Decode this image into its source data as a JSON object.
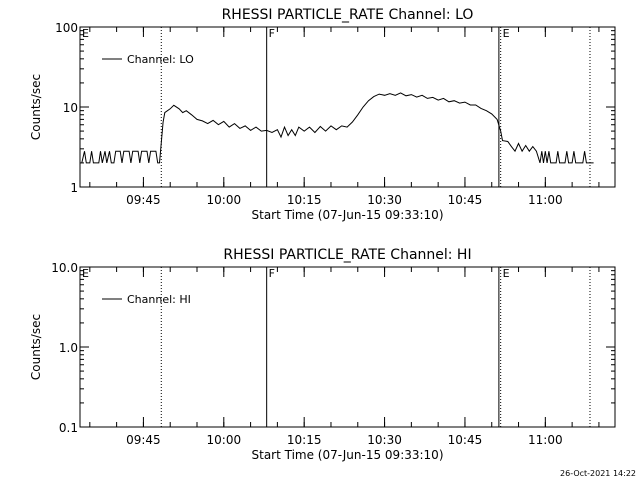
{
  "timestamp": "26-Oct-2021 14:22",
  "chart_data": [
    {
      "type": "line",
      "title": "RHESSI PARTICLE_RATE Channel: LO",
      "xlabel": "Start Time (07-Jun-15 09:33:10)",
      "ylabel": "Counts/sec",
      "yscale": "log",
      "ylim": [
        1,
        100
      ],
      "xlim": [
        "09:33:10",
        "11:13:00"
      ],
      "yticks": [
        {
          "v": 1,
          "label": "1"
        },
        {
          "v": 10,
          "label": "10"
        },
        {
          "v": 100,
          "label": "100"
        }
      ],
      "xticks": [
        {
          "t": "09:45",
          "label": "09:45"
        },
        {
          "t": "10:00",
          "label": "10:00"
        },
        {
          "t": "10:15",
          "label": "10:15"
        },
        {
          "t": "10:30",
          "label": "10:30"
        },
        {
          "t": "10:45",
          "label": "10:45"
        },
        {
          "t": "11:00",
          "label": "11:00"
        }
      ],
      "legend": {
        "label": "Channel: LO",
        "placement": "top-left"
      },
      "markers": [
        {
          "t": "09:33:10",
          "label": "E",
          "style": "dotted",
          "show_line": false
        },
        {
          "t": "09:48:20",
          "label": "",
          "style": "dotted",
          "show_line": true
        },
        {
          "t": "10:08:00",
          "label": "F",
          "style": "solid",
          "show_line": true
        },
        {
          "t": "10:51:20",
          "label": "",
          "style": "solid",
          "show_line": true
        },
        {
          "t": "10:51:40",
          "label": "E",
          "style": "dotted",
          "show_line": true
        },
        {
          "t": "11:08:20",
          "label": "",
          "style": "dotted",
          "show_line": true
        }
      ],
      "series": [
        {
          "values": [
            [
              "09:33:30",
              2
            ],
            [
              "09:34:00",
              2.8
            ],
            [
              "09:34:20",
              2
            ],
            [
              "09:35:00",
              2
            ],
            [
              "09:35:20",
              2.8
            ],
            [
              "09:35:40",
              2
            ],
            [
              "09:36:40",
              2
            ],
            [
              "09:37:00",
              2.8
            ],
            [
              "09:37:20",
              2
            ],
            [
              "09:37:50",
              2.8
            ],
            [
              "09:38:10",
              2
            ],
            [
              "09:38:40",
              2.8
            ],
            [
              "09:39:00",
              2
            ],
            [
              "09:39:30",
              2
            ],
            [
              "09:39:50",
              2.8
            ],
            [
              "09:40:40",
              2.8
            ],
            [
              "09:41:00",
              2
            ],
            [
              "09:41:20",
              2.8
            ],
            [
              "09:42:20",
              2.8
            ],
            [
              "09:42:40",
              2
            ],
            [
              "09:43:00",
              2.8
            ],
            [
              "09:44:00",
              2.8
            ],
            [
              "09:44:20",
              2
            ],
            [
              "09:44:40",
              2.8
            ],
            [
              "09:45:40",
              2.8
            ],
            [
              "09:46:00",
              2
            ],
            [
              "09:46:20",
              2.8
            ],
            [
              "09:47:20",
              2.8
            ],
            [
              "09:47:40",
              2
            ],
            [
              "09:48:00",
              2
            ],
            [
              "09:48:20",
              3.6
            ],
            [
              "09:48:40",
              6.5
            ],
            [
              "09:49:00",
              8.5
            ],
            [
              "09:50:00",
              9.5
            ],
            [
              "09:50:40",
              10.5
            ],
            [
              "09:51:40",
              9.5
            ],
            [
              "09:52:20",
              8.5
            ],
            [
              "09:53:00",
              9
            ],
            [
              "09:54:00",
              8
            ],
            [
              "09:55:00",
              7
            ],
            [
              "09:56:00",
              6.7
            ],
            [
              "09:57:00",
              6.2
            ],
            [
              "09:58:00",
              6.8
            ],
            [
              "09:59:00",
              6
            ],
            [
              "10:00:00",
              6.6
            ],
            [
              "10:01:00",
              5.6
            ],
            [
              "10:02:00",
              6.2
            ],
            [
              "10:03:00",
              5.4
            ],
            [
              "10:04:00",
              5.8
            ],
            [
              "10:05:00",
              5.1
            ],
            [
              "10:06:00",
              5.6
            ],
            [
              "10:07:00",
              5
            ],
            [
              "10:08:00",
              5.1
            ],
            [
              "10:09:00",
              4.8
            ],
            [
              "10:10:00",
              5.2
            ],
            [
              "10:10:40",
              4.2
            ],
            [
              "10:11:20",
              5.6
            ],
            [
              "10:12:00",
              4.4
            ],
            [
              "10:12:40",
              5.2
            ],
            [
              "10:13:20",
              4.4
            ],
            [
              "10:14:00",
              5.6
            ],
            [
              "10:15:00",
              5
            ],
            [
              "10:16:00",
              5.6
            ],
            [
              "10:17:00",
              4.8
            ],
            [
              "10:18:00",
              5.7
            ],
            [
              "10:19:00",
              5
            ],
            [
              "10:20:00",
              5.8
            ],
            [
              "10:21:00",
              5.2
            ],
            [
              "10:22:00",
              5.8
            ],
            [
              "10:23:00",
              5.6
            ],
            [
              "10:24:00",
              6.5
            ],
            [
              "10:25:00",
              8
            ],
            [
              "10:26:00",
              10
            ],
            [
              "10:27:00",
              12
            ],
            [
              "10:28:00",
              13.5
            ],
            [
              "10:29:00",
              14.5
            ],
            [
              "10:30:00",
              14
            ],
            [
              "10:31:00",
              14.7
            ],
            [
              "10:32:00",
              14
            ],
            [
              "10:33:00",
              15
            ],
            [
              "10:34:00",
              13.8
            ],
            [
              "10:35:00",
              14.3
            ],
            [
              "10:36:00",
              13.3
            ],
            [
              "10:37:00",
              14
            ],
            [
              "10:38:00",
              12.8
            ],
            [
              "10:39:00",
              13.2
            ],
            [
              "10:40:00",
              12.2
            ],
            [
              "10:41:00",
              12.8
            ],
            [
              "10:42:00",
              11.6
            ],
            [
              "10:43:00",
              12
            ],
            [
              "10:44:00",
              11.2
            ],
            [
              "10:45:00",
              11.5
            ],
            [
              "10:46:00",
              10.6
            ],
            [
              "10:47:00",
              10.6
            ],
            [
              "10:48:00",
              9.6
            ],
            [
              "10:49:00",
              9
            ],
            [
              "10:50:00",
              8.2
            ],
            [
              "10:51:00",
              7
            ],
            [
              "10:51:40",
              5
            ],
            [
              "10:52:00",
              3.8
            ],
            [
              "10:53:00",
              3.7
            ],
            [
              "10:53:40",
              3.2
            ],
            [
              "10:54:20",
              2.8
            ],
            [
              "10:55:00",
              3.5
            ],
            [
              "10:55:40",
              2.8
            ],
            [
              "10:56:20",
              3.3
            ],
            [
              "10:57:00",
              2.8
            ],
            [
              "10:57:40",
              3.2
            ],
            [
              "10:58:20",
              2.8
            ],
            [
              "10:59:00",
              2
            ],
            [
              "10:59:20",
              2.8
            ],
            [
              "10:59:40",
              2
            ],
            [
              "11:00:00",
              2.8
            ],
            [
              "11:00:20",
              2
            ],
            [
              "11:00:40",
              2.8
            ],
            [
              "11:01:00",
              2
            ],
            [
              "11:02:00",
              2
            ],
            [
              "11:02:20",
              2.8
            ],
            [
              "11:02:40",
              2
            ],
            [
              "11:03:40",
              2
            ],
            [
              "11:04:00",
              2.8
            ],
            [
              "11:04:20",
              2
            ],
            [
              "11:05:00",
              2
            ],
            [
              "11:05:20",
              2.8
            ],
            [
              "11:05:40",
              2
            ],
            [
              "11:07:00",
              2
            ],
            [
              "11:07:20",
              2.8
            ],
            [
              "11:07:40",
              2
            ],
            [
              "11:09:00",
              2
            ]
          ]
        }
      ]
    },
    {
      "type": "line",
      "title": "RHESSI PARTICLE_RATE Channel: HI",
      "xlabel": "Start Time (07-Jun-15 09:33:10)",
      "ylabel": "Counts/sec",
      "yscale": "log",
      "ylim": [
        0.1,
        10
      ],
      "xlim": [
        "09:33:10",
        "11:13:00"
      ],
      "yticks": [
        {
          "v": 0.1,
          "label": "0.1"
        },
        {
          "v": 1,
          "label": "1.0"
        },
        {
          "v": 10,
          "label": "10.0"
        }
      ],
      "xticks": [
        {
          "t": "09:45",
          "label": "09:45"
        },
        {
          "t": "10:00",
          "label": "10:00"
        },
        {
          "t": "10:15",
          "label": "10:15"
        },
        {
          "t": "10:30",
          "label": "10:30"
        },
        {
          "t": "10:45",
          "label": "10:45"
        },
        {
          "t": "11:00",
          "label": "11:00"
        }
      ],
      "legend": {
        "label": "Channel: HI",
        "placement": "top-left"
      },
      "markers": [
        {
          "t": "09:33:10",
          "label": "E",
          "style": "dotted",
          "show_line": false
        },
        {
          "t": "09:48:20",
          "label": "",
          "style": "dotted",
          "show_line": true
        },
        {
          "t": "10:08:00",
          "label": "F",
          "style": "solid",
          "show_line": true
        },
        {
          "t": "10:51:20",
          "label": "",
          "style": "solid",
          "show_line": true
        },
        {
          "t": "10:51:40",
          "label": "E",
          "style": "dotted",
          "show_line": true
        },
        {
          "t": "11:08:20",
          "label": "",
          "style": "dotted",
          "show_line": true
        }
      ],
      "series": [
        {
          "values": []
        }
      ]
    }
  ]
}
